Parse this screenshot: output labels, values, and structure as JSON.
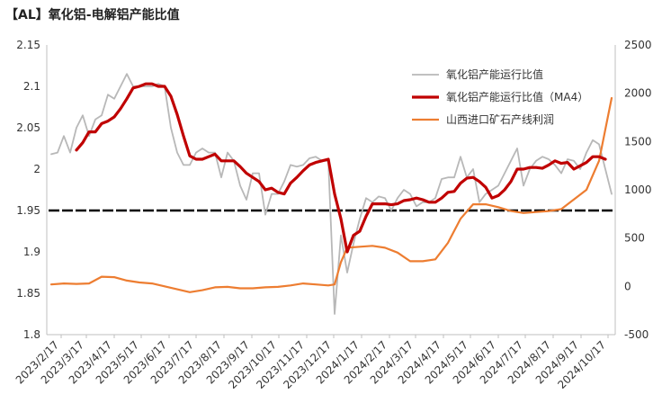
{
  "chart_data": {
    "type": "line",
    "title": "【AL】氧化铝-电解铝产能比值",
    "x_dates": [
      "2023/2/17",
      "2023/3/17",
      "2023/4/17",
      "2023/5/17",
      "2023/6/17",
      "2023/7/17",
      "2023/8/17",
      "2023/9/17",
      "2023/10/17",
      "2023/11/17",
      "2023/12/17",
      "2024/1/17",
      "2024/2/17",
      "2024/3/17",
      "2024/4/17",
      "2024/5/17",
      "2024/6/17",
      "2024/7/17",
      "2024/8/17",
      "2024/9/17",
      "2024/10/17"
    ],
    "y_left_ticks": [
      "2.15",
      "2.1",
      "2.05",
      "2",
      "1.95",
      "1.9",
      "1.85",
      "1.8"
    ],
    "y_right_ticks": [
      "2500",
      "2000",
      "1500",
      "1000",
      "500",
      "0",
      "-500"
    ],
    "ylim_left": [
      1.8,
      2.15
    ],
    "ylim_right": [
      -500,
      2500
    ],
    "reference_line": {
      "value": 1.95,
      "axis": "left",
      "color": "#000000",
      "style": "dashed"
    },
    "legend_position": "top-right",
    "series": [
      {
        "name": "氧化铝产能运行比值",
        "axis": "left",
        "color": "#b8b8b8",
        "values": [
          [
            "2023/2/6",
            2.018
          ],
          [
            "2023/2/13",
            2.02
          ],
          [
            "2023/2/20",
            2.04
          ],
          [
            "2023/2/27",
            2.02
          ],
          [
            "2023/3/6",
            2.05
          ],
          [
            "2023/3/13",
            2.065
          ],
          [
            "2023/3/20",
            2.04
          ],
          [
            "2023/3/27",
            2.06
          ],
          [
            "2023/4/3",
            2.065
          ],
          [
            "2023/4/10",
            2.09
          ],
          [
            "2023/4/17",
            2.085
          ],
          [
            "2023/4/24",
            2.1
          ],
          [
            "2023/5/1",
            2.115
          ],
          [
            "2023/5/8",
            2.1
          ],
          [
            "2023/5/15",
            2.1
          ],
          [
            "2023/5/22",
            2.1
          ],
          [
            "2023/5/29",
            2.1
          ],
          [
            "2023/6/5",
            2.103
          ],
          [
            "2023/6/12",
            2.1
          ],
          [
            "2023/6/19",
            2.05
          ],
          [
            "2023/6/26",
            2.02
          ],
          [
            "2023/7/3",
            2.005
          ],
          [
            "2023/7/10",
            2.005
          ],
          [
            "2023/7/17",
            2.02
          ],
          [
            "2023/7/24",
            2.025
          ],
          [
            "2023/7/31",
            2.02
          ],
          [
            "2023/8/7",
            2.02
          ],
          [
            "2023/8/14",
            1.99
          ],
          [
            "2023/8/21",
            2.02
          ],
          [
            "2023/8/28",
            2.01
          ],
          [
            "2023/9/4",
            1.98
          ],
          [
            "2023/9/11",
            1.963
          ],
          [
            "2023/9/18",
            1.995
          ],
          [
            "2023/9/25",
            1.995
          ],
          [
            "2023/10/2",
            1.945
          ],
          [
            "2023/10/9",
            1.97
          ],
          [
            "2023/10/16",
            1.97
          ],
          [
            "2023/10/23",
            1.985
          ],
          [
            "2023/10/30",
            2.005
          ],
          [
            "2023/11/6",
            2.003
          ],
          [
            "2023/11/13",
            2.005
          ],
          [
            "2023/11/20",
            2.013
          ],
          [
            "2023/11/27",
            2.015
          ],
          [
            "2023/12/4",
            2.01
          ],
          [
            "2023/12/11",
            2.01
          ],
          [
            "2023/12/18",
            1.825
          ],
          [
            "2023/12/25",
            1.92
          ],
          [
            "2024/1/1",
            1.875
          ],
          [
            "2024/1/8",
            1.91
          ],
          [
            "2024/1/15",
            1.94
          ],
          [
            "2024/1/22",
            1.965
          ],
          [
            "2024/1/29",
            1.96
          ],
          [
            "2024/2/5",
            1.967
          ],
          [
            "2024/2/12",
            1.965
          ],
          [
            "2024/2/19",
            1.95
          ],
          [
            "2024/2/26",
            1.965
          ],
          [
            "2024/3/4",
            1.975
          ],
          [
            "2024/3/11",
            1.97
          ],
          [
            "2024/3/18",
            1.955
          ],
          [
            "2024/3/25",
            1.96
          ],
          [
            "2024/4/1",
            1.96
          ],
          [
            "2024/4/8",
            1.965
          ],
          [
            "2024/4/15",
            1.988
          ],
          [
            "2024/4/22",
            1.99
          ],
          [
            "2024/4/29",
            1.99
          ],
          [
            "2024/5/6",
            2.015
          ],
          [
            "2024/5/13",
            1.99
          ],
          [
            "2024/5/20",
            2.0
          ],
          [
            "2024/5/27",
            1.96
          ],
          [
            "2024/6/3",
            1.97
          ],
          [
            "2024/6/10",
            1.975
          ],
          [
            "2024/6/17",
            1.98
          ],
          [
            "2024/6/24",
            1.995
          ],
          [
            "2024/7/1",
            2.01
          ],
          [
            "2024/7/8",
            2.025
          ],
          [
            "2024/7/15",
            1.98
          ],
          [
            "2024/7/22",
            2.0
          ],
          [
            "2024/7/29",
            2.01
          ],
          [
            "2024/8/5",
            2.015
          ],
          [
            "2024/8/12",
            2.012
          ],
          [
            "2024/8/19",
            2.005
          ],
          [
            "2024/8/26",
            1.995
          ],
          [
            "2024/9/2",
            2.012
          ],
          [
            "2024/9/9",
            2.01
          ],
          [
            "2024/9/16",
            2.0
          ],
          [
            "2024/9/23",
            2.02
          ],
          [
            "2024/9/30",
            2.035
          ],
          [
            "2024/10/7",
            2.03
          ],
          [
            "2024/10/14",
            2.0
          ],
          [
            "2024/10/21",
            1.97
          ]
        ]
      },
      {
        "name": "氧化铝产能运行比值（MA4）",
        "axis": "left",
        "color": "#c00000",
        "values": [
          [
            "2023/3/6",
            2.023
          ],
          [
            "2023/3/13",
            2.032
          ],
          [
            "2023/3/20",
            2.045
          ],
          [
            "2023/3/27",
            2.045
          ],
          [
            "2023/4/3",
            2.055
          ],
          [
            "2023/4/10",
            2.058
          ],
          [
            "2023/4/17",
            2.063
          ],
          [
            "2023/4/24",
            2.073
          ],
          [
            "2023/5/1",
            2.085
          ],
          [
            "2023/5/8",
            2.098
          ],
          [
            "2023/5/15",
            2.1
          ],
          [
            "2023/5/22",
            2.103
          ],
          [
            "2023/5/29",
            2.103
          ],
          [
            "2023/6/5",
            2.1
          ],
          [
            "2023/6/12",
            2.1
          ],
          [
            "2023/6/19",
            2.088
          ],
          [
            "2023/6/26",
            2.066
          ],
          [
            "2023/7/3",
            2.04
          ],
          [
            "2023/7/10",
            2.016
          ],
          [
            "2023/7/17",
            2.012
          ],
          [
            "2023/7/24",
            2.012
          ],
          [
            "2023/7/31",
            2.015
          ],
          [
            "2023/8/7",
            2.018
          ],
          [
            "2023/8/14",
            2.01
          ],
          [
            "2023/8/21",
            2.01
          ],
          [
            "2023/8/28",
            2.01
          ],
          [
            "2023/9/4",
            2.003
          ],
          [
            "2023/9/11",
            1.995
          ],
          [
            "2023/9/18",
            1.99
          ],
          [
            "2023/9/25",
            1.985
          ],
          [
            "2023/10/2",
            1.975
          ],
          [
            "2023/10/9",
            1.977
          ],
          [
            "2023/10/16",
            1.972
          ],
          [
            "2023/10/23",
            1.97
          ],
          [
            "2023/10/30",
            1.983
          ],
          [
            "2023/11/6",
            1.99
          ],
          [
            "2023/11/13",
            1.998
          ],
          [
            "2023/11/20",
            2.005
          ],
          [
            "2023/11/27",
            2.008
          ],
          [
            "2023/12/4",
            2.01
          ],
          [
            "2023/12/11",
            2.012
          ],
          [
            "2023/12/18",
            1.97
          ],
          [
            "2023/12/25",
            1.94
          ],
          [
            "2024/1/1",
            1.9
          ],
          [
            "2024/1/8",
            1.92
          ],
          [
            "2024/1/15",
            1.925
          ],
          [
            "2024/1/22",
            1.943
          ],
          [
            "2024/1/29",
            1.958
          ],
          [
            "2024/2/5",
            1.958
          ],
          [
            "2024/2/12",
            1.958
          ],
          [
            "2024/2/19",
            1.957
          ],
          [
            "2024/2/26",
            1.958
          ],
          [
            "2024/3/4",
            1.962
          ],
          [
            "2024/3/11",
            1.963
          ],
          [
            "2024/3/18",
            1.965
          ],
          [
            "2024/3/25",
            1.963
          ],
          [
            "2024/4/1",
            1.96
          ],
          [
            "2024/4/8",
            1.96
          ],
          [
            "2024/4/15",
            1.965
          ],
          [
            "2024/4/22",
            1.972
          ],
          [
            "2024/4/29",
            1.973
          ],
          [
            "2024/5/6",
            1.983
          ],
          [
            "2024/5/13",
            1.989
          ],
          [
            "2024/5/20",
            1.99
          ],
          [
            "2024/5/27",
            1.985
          ],
          [
            "2024/6/3",
            1.978
          ],
          [
            "2024/6/10",
            1.965
          ],
          [
            "2024/6/17",
            1.968
          ],
          [
            "2024/6/24",
            1.975
          ],
          [
            "2024/7/1",
            1.985
          ],
          [
            "2024/7/8",
            2.0
          ],
          [
            "2024/7/15",
            2.0
          ],
          [
            "2024/7/22",
            2.002
          ],
          [
            "2024/7/29",
            2.002
          ],
          [
            "2024/8/5",
            2.001
          ],
          [
            "2024/8/12",
            2.005
          ],
          [
            "2024/8/19",
            2.01
          ],
          [
            "2024/8/26",
            2.007
          ],
          [
            "2024/9/2",
            2.008
          ],
          [
            "2024/9/9",
            2.0
          ],
          [
            "2024/9/16",
            2.004
          ],
          [
            "2024/9/23",
            2.008
          ],
          [
            "2024/9/30",
            2.015
          ],
          [
            "2024/10/7",
            2.015
          ],
          [
            "2024/10/14",
            2.012
          ]
        ]
      },
      {
        "name": "山西进口矿石产线利润",
        "axis": "right",
        "color": "#ed7d31",
        "values": [
          [
            "2023/2/6",
            20
          ],
          [
            "2023/2/20",
            30
          ],
          [
            "2023/3/6",
            25
          ],
          [
            "2023/3/20",
            30
          ],
          [
            "2023/4/3",
            100
          ],
          [
            "2023/4/17",
            95
          ],
          [
            "2023/5/1",
            60
          ],
          [
            "2023/5/15",
            40
          ],
          [
            "2023/5/29",
            30
          ],
          [
            "2023/6/12",
            0
          ],
          [
            "2023/6/26",
            -30
          ],
          [
            "2023/7/10",
            -60
          ],
          [
            "2023/7/24",
            -40
          ],
          [
            "2023/8/7",
            -10
          ],
          [
            "2023/8/21",
            -5
          ],
          [
            "2023/9/4",
            -20
          ],
          [
            "2023/9/18",
            -20
          ],
          [
            "2023/10/2",
            -10
          ],
          [
            "2023/10/16",
            -5
          ],
          [
            "2023/10/30",
            10
          ],
          [
            "2023/11/13",
            30
          ],
          [
            "2023/11/27",
            20
          ],
          [
            "2023/12/11",
            10
          ],
          [
            "2023/12/18",
            20
          ],
          [
            "2023/12/25",
            250
          ],
          [
            "2024/1/1",
            400
          ],
          [
            "2024/1/15",
            410
          ],
          [
            "2024/1/29",
            420
          ],
          [
            "2024/2/12",
            400
          ],
          [
            "2024/2/26",
            350
          ],
          [
            "2024/3/11",
            260
          ],
          [
            "2024/3/25",
            260
          ],
          [
            "2024/4/8",
            280
          ],
          [
            "2024/4/22",
            450
          ],
          [
            "2024/5/6",
            700
          ],
          [
            "2024/5/20",
            850
          ],
          [
            "2024/6/3",
            850
          ],
          [
            "2024/6/17",
            820
          ],
          [
            "2024/7/1",
            780
          ],
          [
            "2024/7/15",
            760
          ],
          [
            "2024/7/29",
            770
          ],
          [
            "2024/8/12",
            780
          ],
          [
            "2024/8/26",
            800
          ],
          [
            "2024/9/9",
            900
          ],
          [
            "2024/9/23",
            1000
          ],
          [
            "2024/10/7",
            1300
          ],
          [
            "2024/10/21",
            1950
          ]
        ]
      }
    ]
  }
}
